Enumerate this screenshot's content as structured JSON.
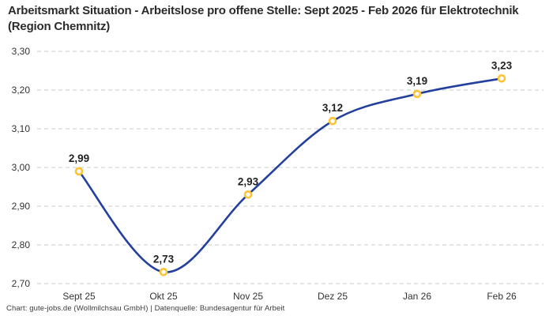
{
  "header": {
    "title": "Arbeitsmarkt Situation - Arbeitslose pro offene Stelle: Sept 2025 - Feb 2026 für Elektrotechnik (Region Chemnitz)"
  },
  "footer": {
    "credit": "Chart: gute-jobs.de (Wollmilchsau GmbH) | Datenquelle: Bundesagentur für Arbeit"
  },
  "chart_data": {
    "type": "line",
    "title": "Arbeitsmarkt Situation - Arbeitslose pro offene Stelle: Sept 2025 - Feb 2026 für Elektrotechnik (Region Chemnitz)",
    "categories": [
      "Sept 25",
      "Okt 25",
      "Nov 25",
      "Dez 25",
      "Jan 26",
      "Feb 26"
    ],
    "values": [
      2.99,
      2.73,
      2.93,
      3.12,
      3.19,
      3.23
    ],
    "point_labels": [
      "2,99",
      "2,73",
      "2,93",
      "3,12",
      "3,19",
      "3,23"
    ],
    "y_ticks": [
      "3,30",
      "3,20",
      "3,10",
      "3,00",
      "2,90",
      "2,80",
      "2,70"
    ],
    "y_tick_values": [
      3.3,
      3.2,
      3.1,
      3.0,
      2.9,
      2.8,
      2.7
    ],
    "ylim": [
      2.7,
      3.3
    ],
    "grid": "dashed-horizontal",
    "legend": "none",
    "xlabel": "",
    "ylabel": "",
    "colors": {
      "line": "#24409e",
      "marker_ring": "#ffc431",
      "marker_fill": "#ffffff",
      "grid": "#c9c9c9",
      "text": "#333333",
      "point_label": "#222222",
      "title": "#2b2b2b"
    }
  }
}
